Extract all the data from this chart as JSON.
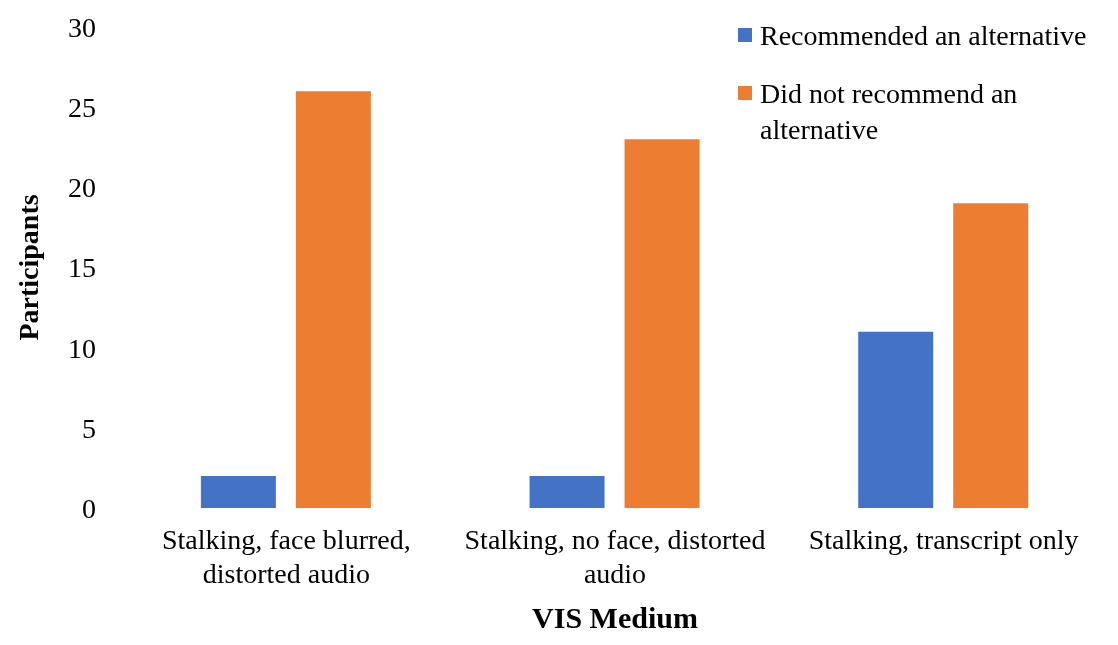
{
  "chart_data": {
    "type": "bar",
    "xlabel": "VIS Medium",
    "ylabel": "Participants",
    "categories": [
      "Stalking, face blurred, distorted audio",
      "Stalking, no face, distorted audio",
      "Stalking, transcript only"
    ],
    "series": [
      {
        "name": "Recommended an alternative",
        "color": "#4472c4",
        "values": [
          2,
          2,
          11
        ]
      },
      {
        "name": "Did not recommend an alternative",
        "color": "#ed7d31",
        "values": [
          26,
          23,
          19
        ]
      }
    ],
    "ylim": [
      0,
      30
    ],
    "yticks": [
      0,
      5,
      10,
      15,
      20,
      25,
      30
    ],
    "legend": "top right"
  }
}
